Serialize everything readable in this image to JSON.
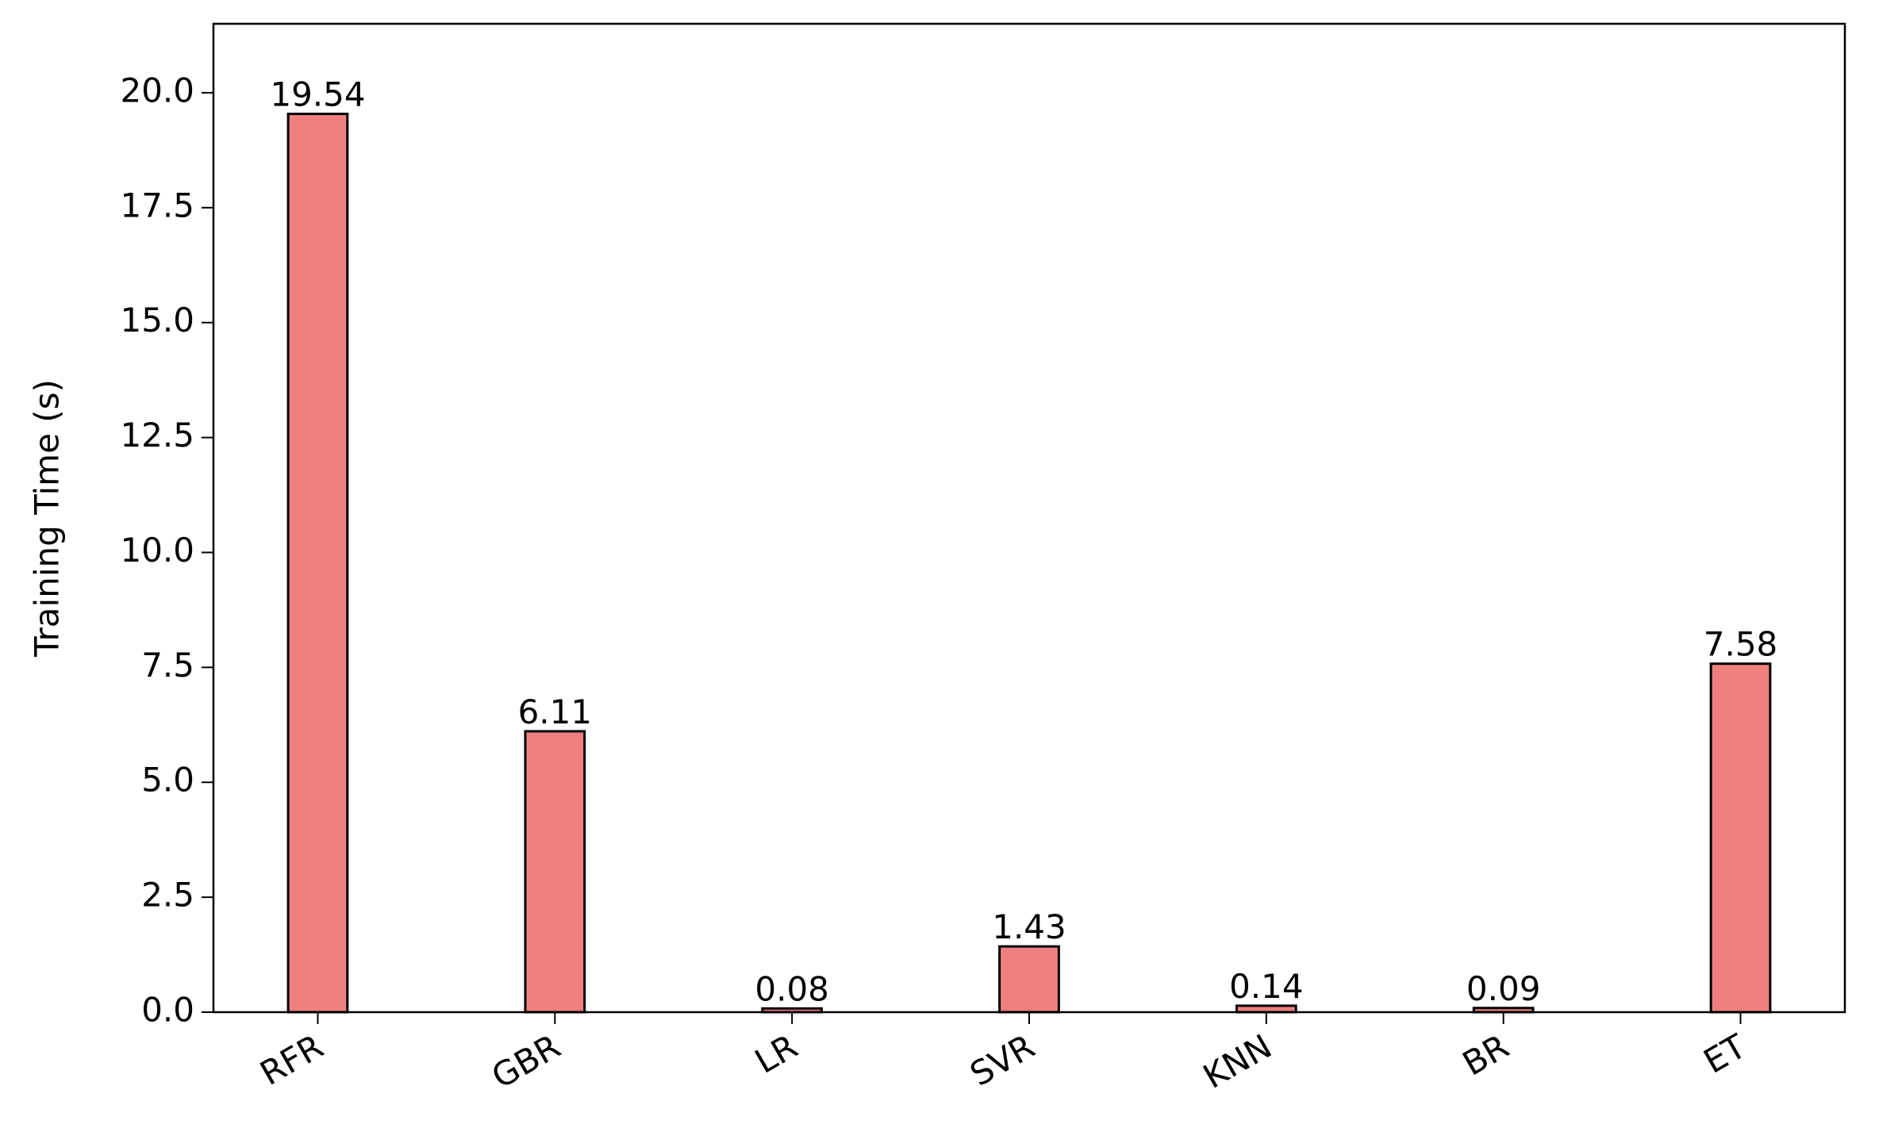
{
  "chart_data": {
    "type": "bar",
    "y_label": "Training Time (s)",
    "categories": [
      "RFR",
      "GBR",
      "LR",
      "SVR",
      "KNN",
      "BR",
      "ET"
    ],
    "values": [
      19.54,
      6.11,
      0.08,
      1.43,
      0.14,
      0.09,
      7.58
    ],
    "color": "#f08080",
    "edgecolor": "#000000",
    "ylim": [
      0,
      21.5
    ],
    "yticks": [
      {
        "value": 0,
        "label": "0.0"
      },
      {
        "value": 2.5,
        "label": "2.5"
      },
      {
        "value": 5,
        "label": "5.0"
      },
      {
        "value": 7.5,
        "label": "7.5"
      },
      {
        "value": 10,
        "label": "10.0"
      },
      {
        "value": 12.5,
        "label": "12.5"
      },
      {
        "value": 15,
        "label": "15.0"
      },
      {
        "value": 17.5,
        "label": "17.5"
      },
      {
        "value": 20,
        "label": "20.0"
      }
    ],
    "grid": false
  }
}
